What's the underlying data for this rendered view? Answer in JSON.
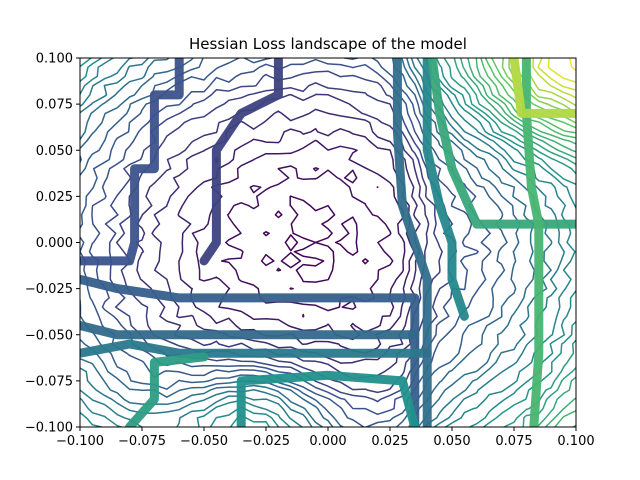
{
  "chart_data": {
    "type": "contour",
    "title": "Hessian Loss landscape of the model",
    "xlabel": "",
    "ylabel": "",
    "xlim": [
      -0.1,
      0.1
    ],
    "ylim": [
      -0.1,
      0.1
    ],
    "xticks": [
      -0.1,
      -0.075,
      -0.05,
      -0.025,
      0.0,
      0.025,
      0.05,
      0.075,
      0.1
    ],
    "xtick_labels": [
      "−0.100",
      "−0.075",
      "−0.050",
      "−0.025",
      "0.000",
      "0.025",
      "0.050",
      "0.075",
      "0.100"
    ],
    "yticks": [
      -0.1,
      -0.075,
      -0.05,
      -0.025,
      0.0,
      0.025,
      0.05,
      0.075,
      0.1
    ],
    "ytick_labels": [
      "−0.100",
      "−0.075",
      "−0.050",
      "−0.025",
      "0.000",
      "0.025",
      "0.050",
      "0.075",
      "0.100"
    ],
    "colormap": "viridis",
    "colormap_stops": [
      "#440154",
      "#3b528b",
      "#21918c",
      "#5ec962",
      "#fde725"
    ],
    "grid": false,
    "minimum": {
      "x": -0.005,
      "y": -0.001
    },
    "high_corners": [
      {
        "x": 0.09,
        "y": 0.09
      },
      {
        "x": -0.03,
        "y": -0.095
      }
    ]
  }
}
